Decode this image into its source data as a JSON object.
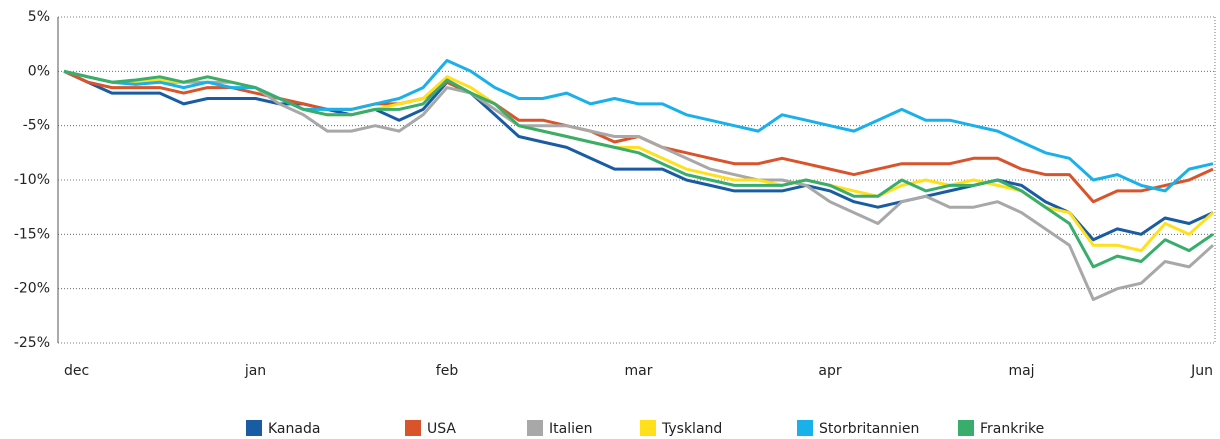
{
  "chart_data": {
    "type": "line",
    "categories": [
      "dec",
      null,
      null,
      null,
      null,
      null,
      null,
      null,
      "jan",
      null,
      null,
      null,
      null,
      null,
      null,
      null,
      "feb",
      null,
      null,
      null,
      null,
      null,
      null,
      null,
      "mar",
      null,
      null,
      null,
      null,
      null,
      null,
      null,
      "apr",
      null,
      null,
      null,
      null,
      null,
      null,
      null,
      "maj",
      null,
      null,
      null,
      null,
      null,
      null,
      null,
      "Jun"
    ],
    "ylim": [
      -25,
      5
    ],
    "yticks": [
      {
        "value": 5,
        "label": "5%"
      },
      {
        "value": 0,
        "label": "0%"
      },
      {
        "value": -5,
        "label": "-5%"
      },
      {
        "value": -10,
        "label": "-10%"
      },
      {
        "value": -15,
        "label": "-15%"
      },
      {
        "value": -20,
        "label": "-20%"
      },
      {
        "value": -25,
        "label": "-25%"
      }
    ],
    "grid": true,
    "series": [
      {
        "name": "Kanada",
        "color": "#1a5ca3",
        "values": [
          0,
          -1,
          -2,
          -2,
          -2,
          -3,
          -2.5,
          -2.5,
          -2.5,
          -3,
          -3,
          -3.5,
          -4,
          -3.5,
          -4.5,
          -3.5,
          -1,
          -2,
          -4,
          -6,
          -6.5,
          -7,
          -8,
          -9,
          -9,
          -9,
          -10,
          -10.5,
          -11,
          -11,
          -11,
          -10.5,
          -11,
          -12,
          -12.5,
          -12,
          -11.5,
          -11,
          -10.5,
          -10,
          -10.5,
          -12,
          -13,
          -15.5,
          -14.5,
          -15,
          -13.5,
          -14,
          -13
        ]
      },
      {
        "name": "USA",
        "color": "#d9532b",
        "values": [
          0,
          -1,
          -1.5,
          -1.5,
          -1.5,
          -2,
          -1.5,
          -1.5,
          -2,
          -2.5,
          -3,
          -3.5,
          -3.5,
          -3,
          -3,
          -2.5,
          -1,
          -2,
          -3,
          -4.5,
          -4.5,
          -5,
          -5.5,
          -6.5,
          -6,
          -7,
          -7.5,
          -8,
          -8.5,
          -8.5,
          -8,
          -8.5,
          -9,
          -9.5,
          -9,
          -8.5,
          -8.5,
          -8.5,
          -8,
          -8,
          -9,
          -9.5,
          -9.5,
          -12,
          -11,
          -11,
          -10.5,
          -10,
          -9
        ]
      },
      {
        "name": "Italien",
        "color": "#a8a8a8",
        "values": [
          0,
          -0.5,
          -1,
          -1,
          -1,
          -1,
          -1,
          -1,
          -1.5,
          -3,
          -4,
          -5.5,
          -5.5,
          -5,
          -5.5,
          -4,
          -1.5,
          -2,
          -3.5,
          -5,
          -5,
          -5,
          -5.5,
          -6,
          -6,
          -7,
          -8,
          -9,
          -9.5,
          -10,
          -10,
          -10.5,
          -12,
          -13,
          -14,
          -12,
          -11.5,
          -12.5,
          -12.5,
          -12,
          -13,
          -14.5,
          -16,
          -21,
          -20,
          -19.5,
          -17.5,
          -18,
          -16
        ]
      },
      {
        "name": "Tyskland",
        "color": "#ffe01a",
        "values": [
          0,
          -0.5,
          -1,
          -1,
          -0.8,
          -1,
          -0.5,
          -1,
          -1.5,
          -2.5,
          -3.5,
          -4,
          -4,
          -3.5,
          -3,
          -2.5,
          -0.5,
          -1.5,
          -3,
          -5,
          -5.5,
          -6,
          -6.5,
          -7,
          -7,
          -8,
          -9,
          -9.5,
          -10,
          -10,
          -10.5,
          -10,
          -10.5,
          -11,
          -11.5,
          -10.5,
          -10,
          -10.5,
          -10,
          -10.5,
          -11,
          -12.5,
          -13,
          -16,
          -16,
          -16.5,
          -14,
          -15,
          -13
        ]
      },
      {
        "name": "Storbritannien",
        "color": "#1ab0ea",
        "values": [
          0,
          -0.5,
          -1,
          -1.2,
          -1,
          -1.5,
          -1,
          -1.5,
          -1.5,
          -2.5,
          -3.5,
          -3.5,
          -3.5,
          -3,
          -2.5,
          -1.5,
          1,
          0,
          -1.5,
          -2.5,
          -2.5,
          -2,
          -3,
          -2.5,
          -3,
          -3,
          -4,
          -4.5,
          -5,
          -5.5,
          -4,
          -4.5,
          -5,
          -5.5,
          -4.5,
          -3.5,
          -4.5,
          -4.5,
          -5,
          -5.5,
          -6.5,
          -7.5,
          -8,
          -10,
          -9.5,
          -10.5,
          -11,
          -9,
          -8.5
        ]
      },
      {
        "name": "Frankrike",
        "color": "#38ad6c",
        "values": [
          0,
          -0.5,
          -1,
          -0.8,
          -0.5,
          -1,
          -0.5,
          -1,
          -1.5,
          -2.5,
          -3.5,
          -4,
          -4,
          -3.5,
          -3.5,
          -3,
          -0.8,
          -2,
          -3,
          -5,
          -5.5,
          -6,
          -6.5,
          -7,
          -7.5,
          -8.5,
          -9.5,
          -10,
          -10.5,
          -10.5,
          -10.5,
          -10,
          -10.5,
          -11.5,
          -11.5,
          -10,
          -11,
          -10.5,
          -10.5,
          -10,
          -11,
          -12.5,
          -14,
          -18,
          -17,
          -17.5,
          -15.5,
          -16.5,
          -15
        ]
      }
    ]
  }
}
